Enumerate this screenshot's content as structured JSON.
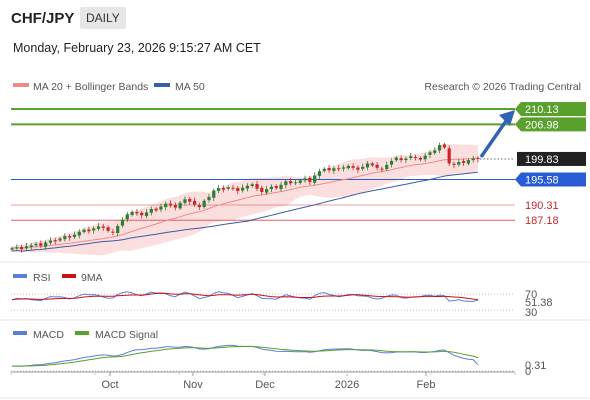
{
  "header": {
    "symbol": "CHF/JPY",
    "timeframe": "DAILY",
    "datetime": "Monday, February 23, 2026 9:15:27 AM CET",
    "copyright": "Research © 2026 Trading Central"
  },
  "colors": {
    "up_candle": "#2e7d32",
    "down_candle": "#c62828",
    "ma20": "#ef8a8a",
    "bollinger_fill": "#fbdcdc",
    "ma50": "#3b5ba5",
    "resistance": "#5aa02c",
    "support_blue": "#2a5bd7",
    "support_red": "#e06060",
    "pivot": "#222222",
    "rsi": "#5b7fd6",
    "rsi_ma": "#cc1111",
    "macd": "#5b7fd6",
    "macd_signal": "#5aa02c",
    "arrow": "#2f64b5"
  },
  "chart_data": [
    {
      "type": "candlestick",
      "legend": [
        {
          "name": "MA 20 + Bollinger Bands",
          "color": "#ef8a8a"
        },
        {
          "name": "MA 50",
          "color": "#3b5ba5"
        }
      ],
      "x_ticks": [
        "Oct",
        "Nov",
        "Dec",
        "2026",
        "Feb"
      ],
      "levels": [
        {
          "value": 210.13,
          "label": "210.13",
          "kind": "resistance"
        },
        {
          "value": 206.98,
          "label": "206.98",
          "kind": "resistance"
        },
        {
          "value": 199.83,
          "label": "199.83",
          "kind": "pivot"
        },
        {
          "value": 195.58,
          "label": "195.58",
          "kind": "support_blue"
        },
        {
          "value": 190.31,
          "label": "190.31",
          "kind": "support_red"
        },
        {
          "value": 187.18,
          "label": "187.18",
          "kind": "support_red"
        }
      ],
      "close_series": [
        181.4,
        181.6,
        181.2,
        181.8,
        182.0,
        182.3,
        181.9,
        182.6,
        183.0,
        182.8,
        183.4,
        183.9,
        183.6,
        184.2,
        184.8,
        185.2,
        184.9,
        185.5,
        185.9,
        185.6,
        185.0,
        184.6,
        186.0,
        187.2,
        188.4,
        188.9,
        188.6,
        188.2,
        188.8,
        189.5,
        189.2,
        190.0,
        190.6,
        190.2,
        189.8,
        190.8,
        191.5,
        191.0,
        190.4,
        189.9,
        191.2,
        192.0,
        193.3,
        193.8,
        193.5,
        194.0,
        193.8,
        193.2,
        193.9,
        194.3,
        194.6,
        193.7,
        193.0,
        193.6,
        194.1,
        193.8,
        194.5,
        195.2,
        194.8,
        195.0,
        195.4,
        195.8,
        195.1,
        196.4,
        197.3,
        197.8,
        197.5,
        197.9,
        197.7,
        198.1,
        198.4,
        198.0,
        197.6,
        198.2,
        198.9,
        198.5,
        198.0,
        197.8,
        198.6,
        199.4,
        200.1,
        199.6,
        199.9,
        200.4,
        200.1,
        199.7,
        200.5,
        201.2,
        201.6,
        202.7,
        202.2,
        198.9,
        198.6,
        199.2,
        199.0,
        199.6,
        199.9,
        199.83
      ],
      "arrow_target": 210.13,
      "y_range": [
        180,
        212
      ]
    },
    {
      "type": "line",
      "legend": [
        {
          "name": "RSI",
          "color": "#5b7fd6"
        },
        {
          "name": "9MA",
          "color": "#cc1111"
        }
      ],
      "y_ticks": [
        "70",
        "30"
      ],
      "last_value": "51.38",
      "y_range": [
        25,
        75
      ]
    },
    {
      "type": "line",
      "legend": [
        {
          "name": "MACD",
          "color": "#5b7fd6"
        },
        {
          "name": "MACD Signal",
          "color": "#5aa02c"
        }
      ],
      "y_ticks": [
        "0"
      ],
      "last_value": "0.31",
      "y_range": [
        -0.8,
        2.4
      ]
    }
  ]
}
